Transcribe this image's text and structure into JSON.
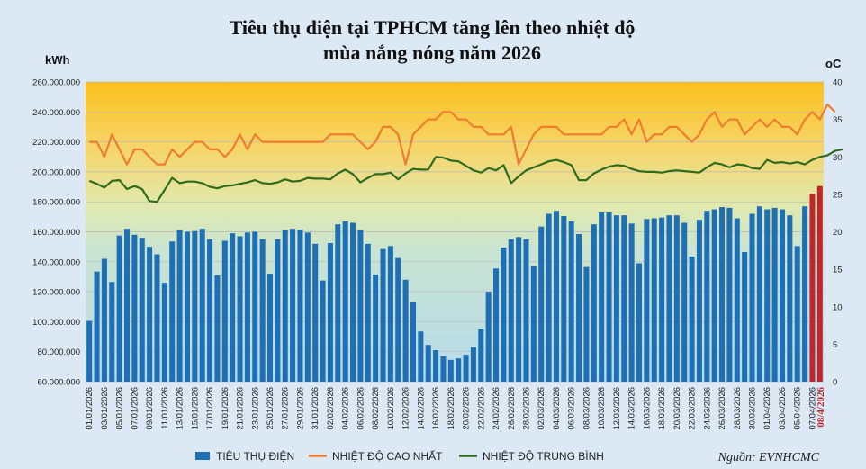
{
  "chart_data": {
    "type": "bar",
    "title_line1": "Tiêu thụ điện tại TPHCM tăng lên theo nhiệt độ",
    "title_line2": "mùa nắng nóng năm 2026",
    "ylabel_left": "kWh",
    "ylabel_right": "oC",
    "ylim_left": [
      60000000,
      260000000
    ],
    "ylim_right": [
      0,
      40
    ],
    "yticks_left": [
      "60.000.000",
      "80.000.000",
      "100.000.000",
      "120.000.000",
      "140.000.000",
      "160.000.000",
      "180.000.000",
      "200.000.000",
      "220.000.000",
      "240.000.000",
      "260.000.000"
    ],
    "yticks_right": [
      "0",
      "5",
      "10",
      "15",
      "20",
      "25",
      "30",
      "35",
      "40"
    ],
    "x_tick_labels": [
      "01/01/2026",
      "03/01/2026",
      "05/01/2026",
      "07/01/2026",
      "09/01/2026",
      "11/01/2026",
      "13/01/2026",
      "15/01/2026",
      "17/01/2026",
      "19/01/2026",
      "21/01/2026",
      "23/01/2026",
      "25/01/2026",
      "27/01/2026",
      "29/01/2026",
      "31/01/2026",
      "02/02/2026",
      "04/02/2026",
      "06/02/2026",
      "08/02/2026",
      "10/02/2026",
      "12/02/2026",
      "14/02/2026",
      "16/02/2026",
      "18/02/2026",
      "20/02/2026",
      "22/02/2026",
      "24/02/2026",
      "26/02/2026",
      "28/02/2026",
      "02/03/2026",
      "04/03/2026",
      "06/03/2026",
      "08/03/2026",
      "10/03/2026",
      "12/03/2026",
      "14/03/2026",
      "16/03/2026",
      "18/03/2026",
      "20/03/2026",
      "22/03/2026",
      "24/03/2026",
      "26/03/2026",
      "28/03/2026",
      "30/03/2026",
      "01/04/2026",
      "03/04/2026",
      "05/04/2026",
      "07/04/2026"
    ],
    "highlight_label": "08/4/2026",
    "series": [
      {
        "name": "TIÊU THỤ ĐIỆN",
        "color": "#1f6fb5",
        "axis": "left",
        "values": [
          100500000,
          133500000,
          142000000,
          126500000,
          157500000,
          162000000,
          158000000,
          156000000,
          150000000,
          145000000,
          126000000,
          153500000,
          161000000,
          160000000,
          160500000,
          162000000,
          155000000,
          131000000,
          154000000,
          159000000,
          157000000,
          159500000,
          160000000,
          155000000,
          132000000,
          155000000,
          161000000,
          162000000,
          161500000,
          159500000,
          152000000,
          127500000,
          152500000,
          165000000,
          167000000,
          166000000,
          161000000,
          152000000,
          131500000,
          148500000,
          150500000,
          142500000,
          128000000,
          113000000,
          93500000,
          84500000,
          81000000,
          77000000,
          74500000,
          75500000,
          78000000,
          83000000,
          95000000,
          120000000,
          135500000,
          149500000,
          155000000,
          156500000,
          155000000,
          137000000,
          163500000,
          172000000,
          174000000,
          170500000,
          167000000,
          158500000,
          136500000,
          165000000,
          173000000,
          173000000,
          171000000,
          171000000,
          165500000,
          139000000,
          168500000,
          169000000,
          169500000,
          171000000,
          171000000,
          166000000,
          143500000,
          168000000,
          174000000,
          175000000,
          176500000,
          176000000,
          169000000,
          146500000,
          172000000,
          177000000,
          175000000,
          176000000,
          175000000,
          171000000,
          150500000,
          177000000,
          185500000,
          190500000
        ],
        "highlight_last": 2,
        "highlight_color": "#c0272d"
      },
      {
        "name": "NHIỆT ĐỘ CAO NHẤT",
        "color": "#ef7d2d",
        "axis": "right",
        "values": [
          32,
          32,
          30,
          33,
          31,
          29,
          31,
          31,
          30,
          29,
          29,
          31,
          30,
          31,
          32,
          32,
          31,
          31,
          30,
          31,
          33,
          31,
          33,
          32,
          32,
          32,
          32,
          32,
          32,
          32,
          32,
          32,
          33,
          33,
          33,
          33,
          32,
          31,
          32,
          34,
          34,
          33,
          29,
          33,
          34,
          35,
          35,
          36,
          36,
          35,
          35,
          34,
          34,
          33,
          33,
          33,
          34,
          29,
          31,
          33,
          34,
          34,
          34,
          33,
          33,
          33,
          33,
          33,
          33,
          34,
          34,
          35,
          33,
          35,
          32,
          33,
          33,
          34,
          34,
          33,
          32,
          33,
          35,
          36,
          34,
          35,
          35,
          33,
          34,
          35,
          34,
          35,
          34,
          34,
          33,
          35,
          36,
          35,
          37,
          36
        ]
      },
      {
        "name": "NHIỆT ĐỘ TRUNG BÌNH",
        "color": "#2e6b1e",
        "axis": "right",
        "values": [
          26.8,
          26.4,
          25.9,
          26.8,
          26.9,
          25.7,
          26.1,
          25.7,
          24.1,
          24.0,
          25.6,
          27.2,
          26.5,
          26.7,
          26.7,
          26.5,
          26.0,
          25.8,
          26.1,
          26.2,
          26.4,
          26.6,
          26.9,
          26.5,
          26.4,
          26.6,
          27.0,
          26.7,
          26.8,
          27.2,
          27.1,
          27.1,
          27.0,
          27.8,
          28.3,
          27.7,
          26.6,
          27.2,
          27.7,
          27.7,
          27.9,
          27.0,
          27.8,
          28.4,
          28.3,
          28.3,
          30.0,
          29.9,
          29.5,
          29.4,
          28.8,
          28.2,
          27.9,
          28.5,
          28.2,
          28.9,
          26.5,
          27.4,
          28.2,
          28.6,
          29.0,
          29.4,
          29.6,
          29.3,
          28.9,
          26.9,
          26.9,
          27.8,
          28.3,
          28.7,
          28.9,
          28.8,
          28.4,
          28.1,
          28.0,
          28.0,
          27.9,
          28.1,
          28.2,
          28.1,
          28.0,
          27.9,
          28.6,
          29.2,
          29.0,
          28.6,
          29.0,
          28.9,
          28.5,
          28.4,
          29.6,
          29.2,
          29.3,
          29.1,
          29.3,
          29.0,
          29.6,
          30.0,
          30.2,
          30.8,
          31.0
        ]
      }
    ],
    "legend_position": "bottom",
    "source": "Nguồn: EVNHCMC",
    "plot_gradient": [
      "#fbc01c",
      "#f6d56a",
      "#e0e9b0",
      "#c9e4d2",
      "#b6dbeb"
    ]
  }
}
